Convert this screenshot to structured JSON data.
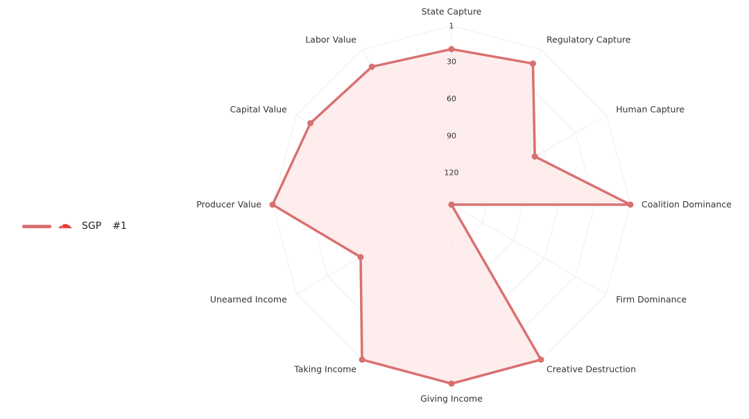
{
  "chart_data": {
    "type": "radar",
    "axes": [
      "State Capture",
      "Regulatory Capture",
      "Human Capture",
      "Coalition Dominance",
      "Firm Dominance",
      "Creative Destruction",
      "Giving Income",
      "Taking Income",
      "Unearned Income",
      "Producer Value",
      "Capital Value",
      "Labor Value"
    ],
    "radial_ticks": [
      "1",
      "30",
      "60",
      "90",
      "120"
    ],
    "radial_range": [
      1,
      146
    ],
    "radial_reversed": true,
    "series": [
      {
        "name": "SGP",
        "rank": "#1",
        "color": "#d97070",
        "fill": "#fde7e7",
        "values": [
          20,
          14,
          68,
          1,
          146,
          1,
          1,
          1,
          61,
          1,
          14,
          17
        ]
      }
    ],
    "legend_position": "left",
    "grid": true
  }
}
